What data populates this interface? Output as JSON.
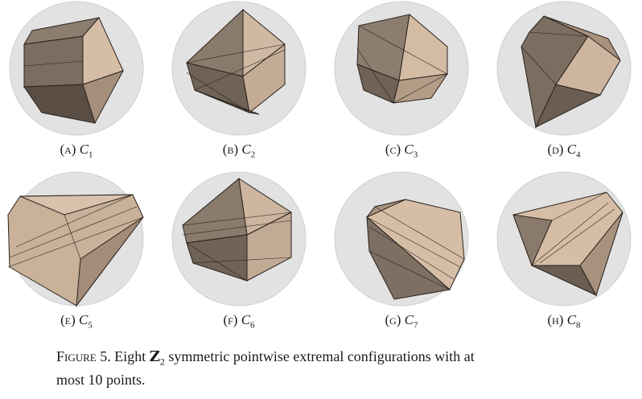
{
  "figure": {
    "panels": [
      {
        "letter": "(a)",
        "symbol": "C",
        "index": "1"
      },
      {
        "letter": "(b)",
        "symbol": "C",
        "index": "2"
      },
      {
        "letter": "(c)",
        "symbol": "C",
        "index": "3"
      },
      {
        "letter": "(d)",
        "symbol": "C",
        "index": "4"
      },
      {
        "letter": "(e)",
        "symbol": "C",
        "index": "5"
      },
      {
        "letter": "(f)",
        "symbol": "C",
        "index": "6"
      },
      {
        "letter": "(g)",
        "symbol": "C",
        "index": "7"
      },
      {
        "letter": "(h)",
        "symbol": "C",
        "index": "8"
      }
    ],
    "caption": {
      "label": "Figure 5.",
      "pre": "Eight",
      "group_symbol": "Z",
      "group_index": "2",
      "line1_rest": "symmetric pointwise extremal configurations with at",
      "line2": "most 10 points."
    }
  },
  "colors": {
    "sphere": "#e2e2e2",
    "sphere_edge": "#c8c8c8",
    "light_face": "#d9c2ab",
    "mid_face": "#a08c79",
    "dark_face": "#6b5e51",
    "edge": "#2a231e"
  }
}
